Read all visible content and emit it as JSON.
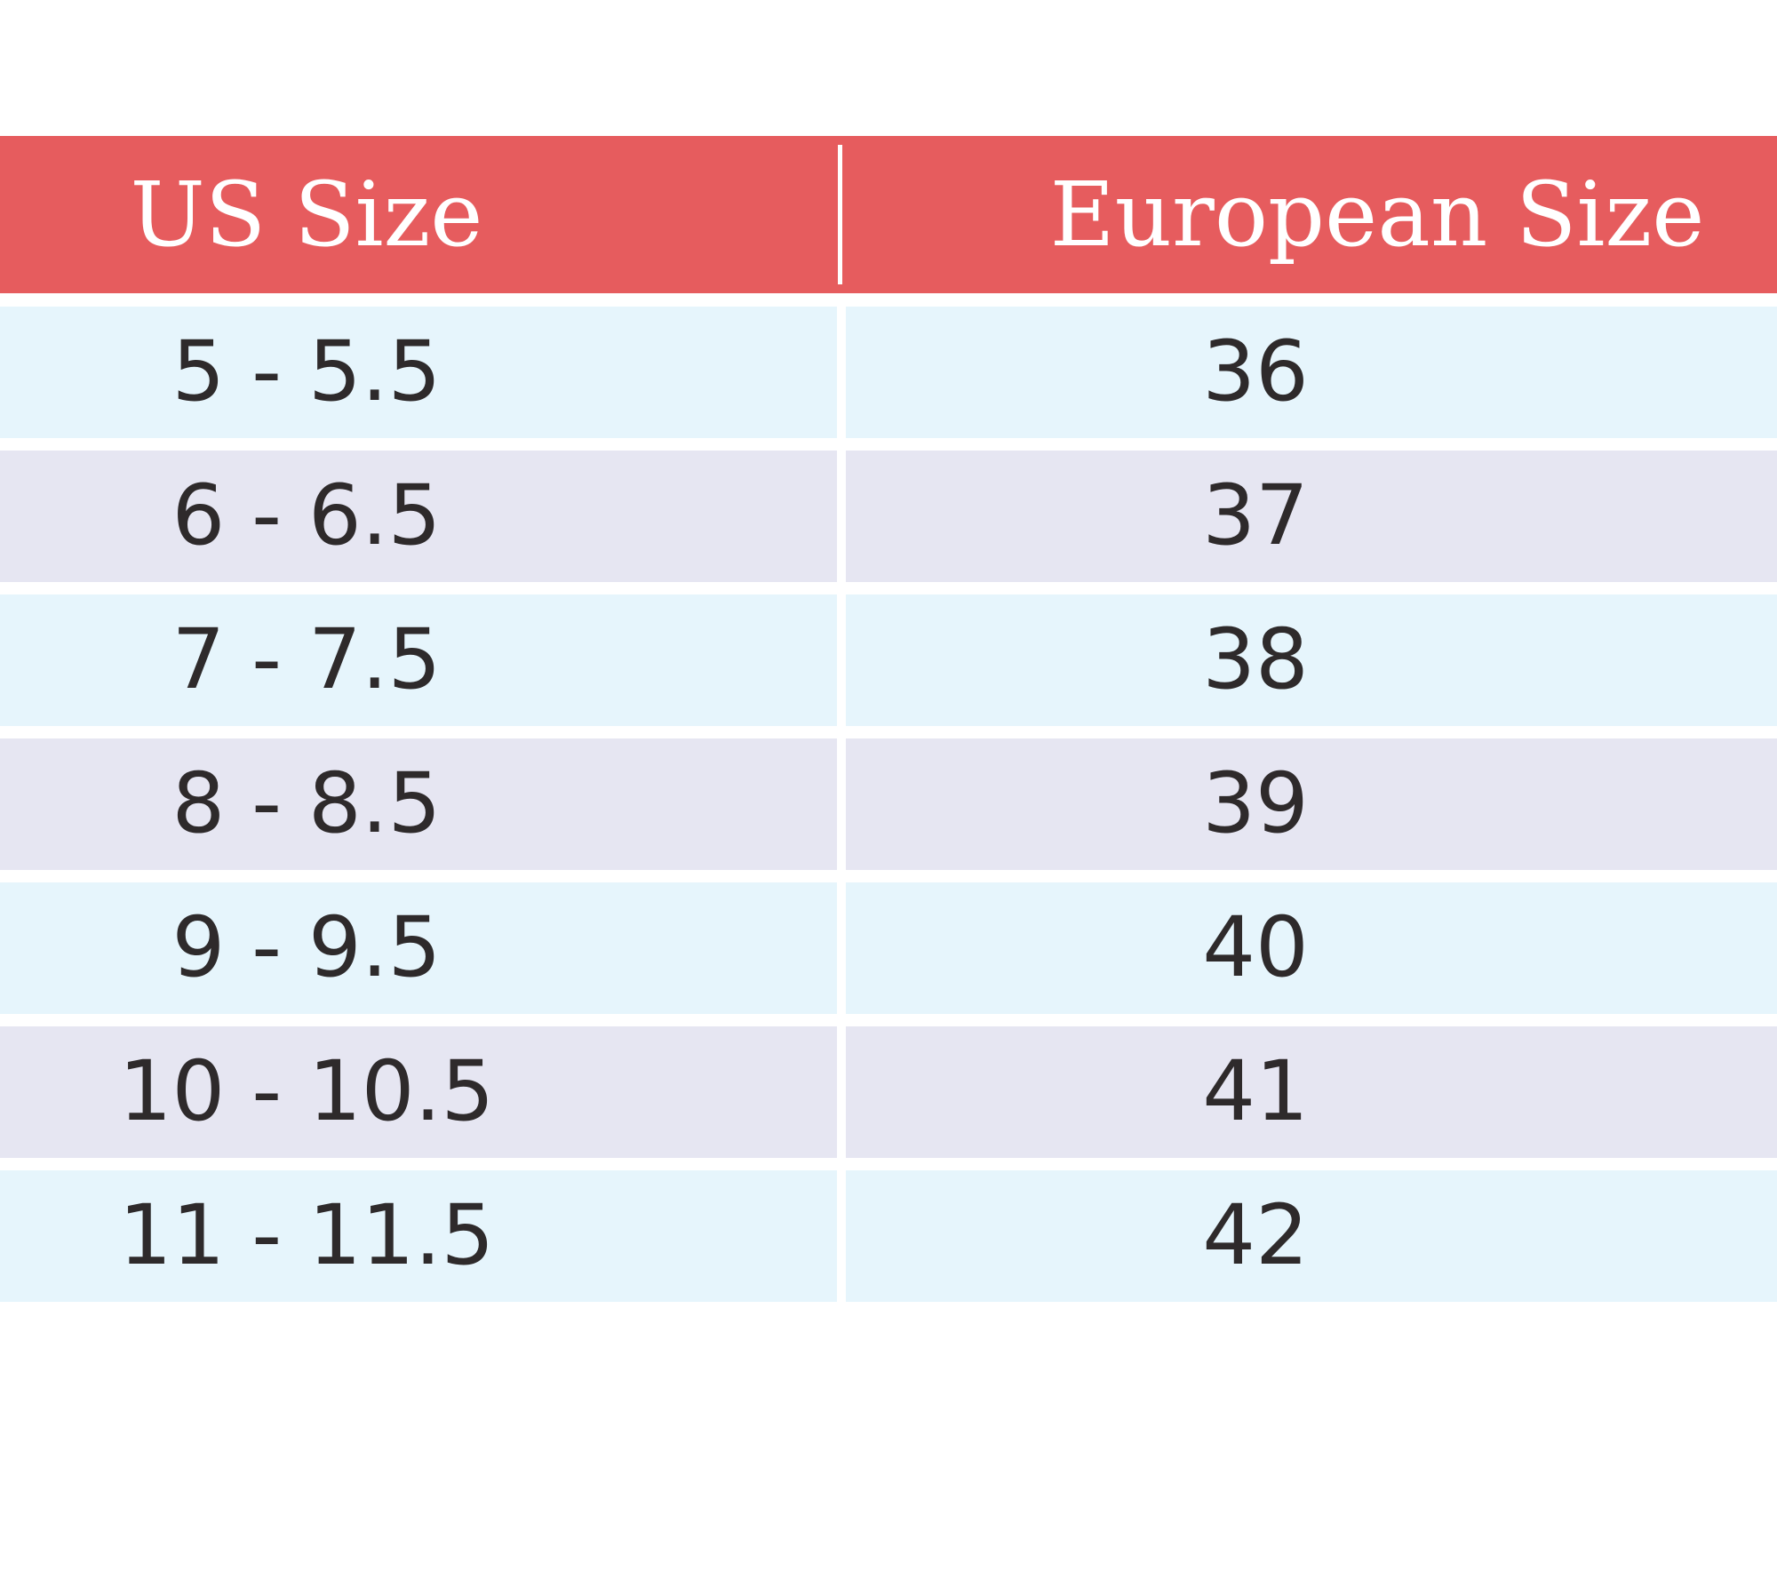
{
  "table": {
    "headers": {
      "us": "US Size",
      "eu": "European Size"
    },
    "colors": {
      "header": "#e65c5e",
      "row_light_blue": "#e6f5fc",
      "row_lavender": "#e6e6f2",
      "text": "#2e2a2b"
    },
    "rows": [
      {
        "us": "5 - 5.5",
        "eu": "36"
      },
      {
        "us": "6 - 6.5",
        "eu": "37"
      },
      {
        "us": "7 - 7.5",
        "eu": "38"
      },
      {
        "us": "8 - 8.5",
        "eu": "39"
      },
      {
        "us": "9 - 9.5",
        "eu": "40"
      },
      {
        "us": "10 - 10.5",
        "eu": "41"
      },
      {
        "us": "11 - 11.5",
        "eu": "42"
      }
    ]
  }
}
